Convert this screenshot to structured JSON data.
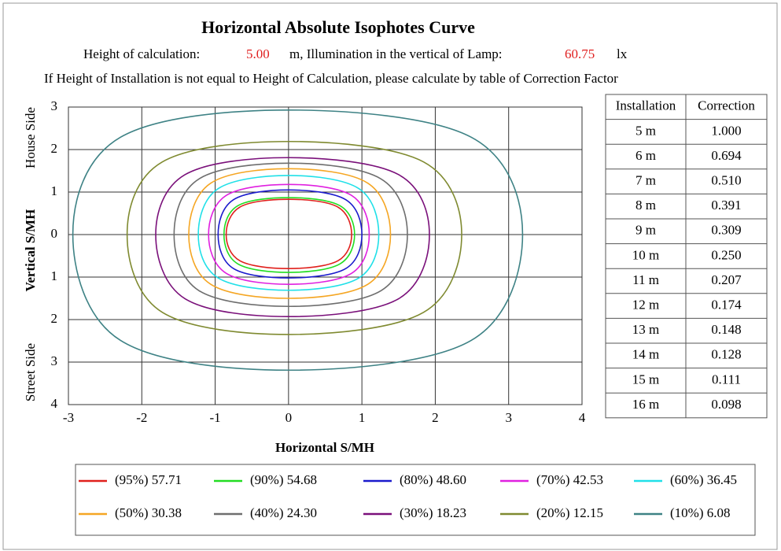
{
  "chart_data": {
    "type": "contour",
    "title": "Horizontal Absolute Isophotes Curve",
    "subtitle": {
      "height_label": "Height of calculation:",
      "height": "5.00",
      "illum_label": "m, Illumination in the vertical of Lamp:",
      "illum": "60.75",
      "unit": "lx"
    },
    "note": "If Height of Installation is not equal to Height of Calculation, please calculate by table of Correction Factor",
    "xlabel": "Horizontal  S/MH",
    "ylabel": "Vertical  S/MH",
    "top_side_label": "House Side",
    "bottom_side_label": "Street Side",
    "xlim": [
      -3,
      4
    ],
    "xticks": [
      -3,
      -2,
      -1,
      0,
      1,
      2,
      3,
      4
    ],
    "ylim": [
      -4,
      3
    ],
    "yticks": [
      {
        "value": -4,
        "label": "4"
      },
      {
        "value": -3,
        "label": "3"
      },
      {
        "value": -2,
        "label": "2"
      },
      {
        "value": -1,
        "label": "1"
      },
      0,
      1,
      2,
      3
    ],
    "grid": true,
    "series": [
      {
        "name": "(95%) 57.71",
        "color": "#e0201c",
        "x": [
          0.86,
          0.67,
          0,
          -0.66,
          -0.85,
          -0.66,
          0,
          0.67
        ],
        "y": [
          0,
          0.65,
          0.83,
          0.65,
          0,
          -0.62,
          -0.8,
          -0.62
        ]
      },
      {
        "name": "(90%) 54.68",
        "color": "#22dd22",
        "x": [
          0.9,
          0.7,
          0,
          -0.69,
          -0.88,
          -0.69,
          0,
          0.7
        ],
        "y": [
          0,
          0.68,
          0.87,
          0.68,
          0,
          -0.69,
          -0.89,
          -0.69
        ]
      },
      {
        "name": "(80%) 48.60",
        "color": "#1a1acc",
        "x": [
          1,
          0.78,
          0,
          -0.75,
          -0.96,
          -0.75,
          0,
          0.78
        ],
        "y": [
          0,
          0.82,
          1.05,
          0.82,
          0,
          -0.8,
          -1.02,
          -0.8
        ]
      },
      {
        "name": "(70%) 42.53",
        "color": "#e020e0",
        "x": [
          1.1,
          0.86,
          0,
          -0.85,
          -1.09,
          -0.85,
          0,
          0.86
        ],
        "y": [
          0,
          0.92,
          1.18,
          0.92,
          0,
          -0.91,
          -1.17,
          -0.91
        ]
      },
      {
        "name": "(60%) 36.45",
        "color": "#20e0e8",
        "x": [
          1.23,
          0.96,
          0,
          -0.96,
          -1.23,
          -0.96,
          0,
          0.96
        ],
        "y": [
          0,
          1.08,
          1.39,
          1.08,
          0,
          -1.02,
          -1.31,
          -1.02
        ]
      },
      {
        "name": "(50%) 30.38",
        "color": "#f5a623",
        "x": [
          1.39,
          1.08,
          0,
          -1.06,
          -1.36,
          -1.06,
          0,
          1.08
        ],
        "y": [
          0,
          1.21,
          1.55,
          1.21,
          0,
          -1.17,
          -1.5,
          -1.17
        ]
      },
      {
        "name": "(40%) 24.30",
        "color": "#6e6e6e",
        "x": [
          1.62,
          1.26,
          0,
          -1.22,
          -1.56,
          -1.22,
          0,
          1.26
        ],
        "y": [
          0,
          1.31,
          1.68,
          1.31,
          0,
          -1.32,
          -1.69,
          -1.32
        ]
      },
      {
        "name": "(30%) 18.23",
        "color": "#7a107a",
        "x": [
          1.92,
          1.5,
          0,
          -1.41,
          -1.81,
          -1.41,
          0,
          1.5
        ],
        "y": [
          0,
          1.41,
          1.81,
          1.41,
          0,
          -1.51,
          -1.93,
          -1.51
        ]
      },
      {
        "name": "(20%) 12.15",
        "color": "#7f8a30",
        "x": [
          2.36,
          1.84,
          0,
          -1.72,
          -2.2,
          -1.72,
          0,
          1.84
        ],
        "y": [
          0,
          1.71,
          2.19,
          1.71,
          0,
          -1.83,
          -2.35,
          -1.83
        ]
      },
      {
        "name": "(10%) 6.08",
        "color": "#3e8285",
        "x": [
          3.19,
          2.49,
          0,
          -2.29,
          -2.94,
          -2.29,
          0,
          2.49
        ],
        "y": [
          0,
          2.29,
          2.93,
          2.29,
          0,
          -2.49,
          -3.19,
          -2.49
        ]
      }
    ]
  },
  "correction_table": {
    "headers": [
      "Installation",
      "Correction"
    ],
    "rows": [
      [
        "5 m",
        "1.000"
      ],
      [
        "6 m",
        "0.694"
      ],
      [
        "7 m",
        "0.510"
      ],
      [
        "8 m",
        "0.391"
      ],
      [
        "9 m",
        "0.309"
      ],
      [
        "10 m",
        "0.250"
      ],
      [
        "11 m",
        "0.207"
      ],
      [
        "12 m",
        "0.174"
      ],
      [
        "13 m",
        "0.148"
      ],
      [
        "14 m",
        "0.128"
      ],
      [
        "15 m",
        "0.111"
      ],
      [
        "16 m",
        "0.098"
      ]
    ]
  }
}
